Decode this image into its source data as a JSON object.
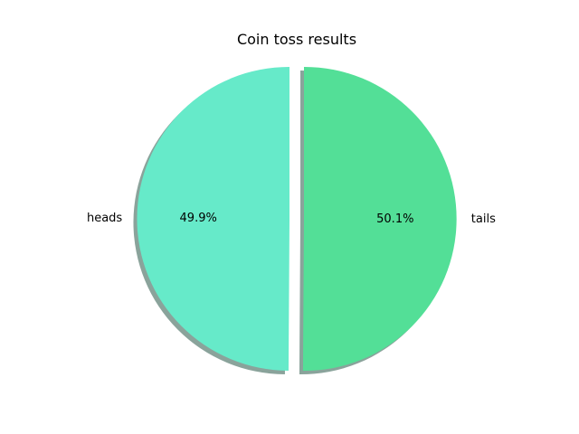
{
  "chart_data": {
    "type": "pie",
    "title": "Coin toss results",
    "categories": [
      "heads",
      "tails"
    ],
    "values": [
      49.9,
      50.1
    ],
    "percent_labels": [
      "49.9%",
      "50.1%"
    ],
    "colors": [
      "#66eac9",
      "#53df97"
    ],
    "shadow_color": "#8aa39b",
    "shadow": true,
    "exploded": true,
    "start_angle_deg": 90
  }
}
